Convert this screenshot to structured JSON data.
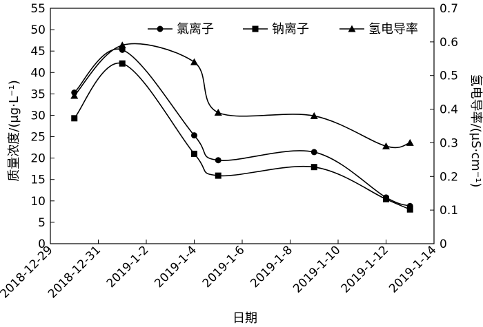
{
  "chart_data": {
    "type": "line",
    "xlabel": "日期",
    "ylabel_left": "质量浓度/(μg·L⁻¹)",
    "ylabel_right": "氢电导率/(μS·cm⁻¹)",
    "x_ticks": [
      "2018-12-29",
      "2018-12-31",
      "2019-1-2",
      "2019-1-4",
      "2019-1-6",
      "2019-1-8",
      "2019-1-10",
      "2019-1-12",
      "2019-1-14"
    ],
    "xlim": [
      "2018-12-29",
      "2019-1-14"
    ],
    "y_left_lim": [
      0,
      55
    ],
    "y_left_ticks": [
      "0",
      "5",
      "10",
      "15",
      "20",
      "25",
      "30",
      "35",
      "40",
      "45",
      "50",
      "55"
    ],
    "y_right_lim": [
      0,
      0.7
    ],
    "y_right_ticks": [
      "0",
      "0.1",
      "0.2",
      "0.3",
      "0.4",
      "0.5",
      "0.6",
      "0.7"
    ],
    "legend_position": "top-right",
    "series": [
      {
        "name": "氯离子",
        "axis": "left",
        "marker": "circle",
        "x": [
          "2018-12-30",
          "2019-1-1",
          "2019-1-4",
          "2019-1-5",
          "2019-1-9",
          "2019-1-12",
          "2019-1-13"
        ],
        "values": [
          35.3,
          45.3,
          25.3,
          19.5,
          21.4,
          10.8,
          8.8
        ]
      },
      {
        "name": "钠离子",
        "axis": "left",
        "marker": "square",
        "x": [
          "2018-12-30",
          "2019-1-1",
          "2019-1-4",
          "2019-1-5",
          "2019-1-9",
          "2019-1-12",
          "2019-1-13"
        ],
        "values": [
          29.3,
          42.1,
          21.0,
          15.9,
          17.9,
          10.4,
          8.0
        ]
      },
      {
        "name": "氢电导率",
        "axis": "right",
        "marker": "triangle",
        "x": [
          "2018-12-30",
          "2019-1-1",
          "2019-1-4",
          "2019-1-5",
          "2019-1-9",
          "2019-1-12",
          "2019-1-13"
        ],
        "values": [
          0.44,
          0.59,
          0.54,
          0.39,
          0.38,
          0.29,
          0.3
        ]
      }
    ]
  }
}
